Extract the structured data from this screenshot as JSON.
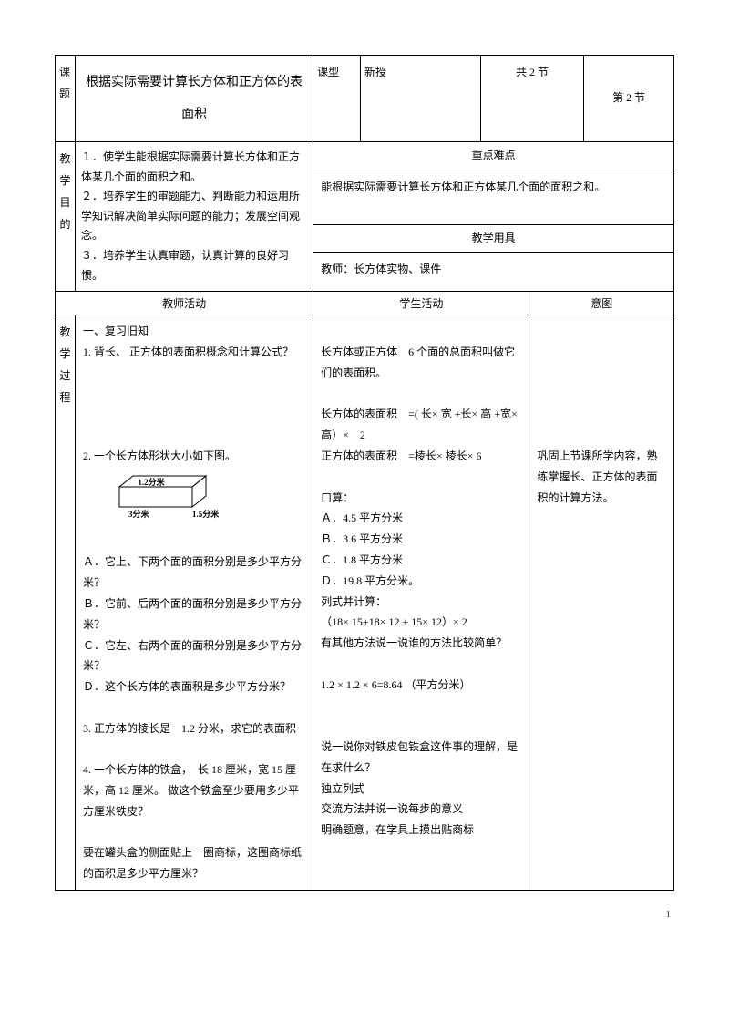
{
  "header": {
    "topic_label": "课题",
    "topic_title": "根据实际需要计算长方体和正方体的表面积",
    "type_label": "课型",
    "type_value": "新授",
    "total_sections": "共 2 节",
    "section_number": "第 2 节"
  },
  "goals": {
    "label": "教学目的",
    "content": "１．使学生能根据实际需要计算长方体和正方体某几个面的面积之和。\n２．培养学生的审题能力、判断能力和运用所学知识解决简单实际问题的能力；发展空间观念。\n３．培养学生认真审题，认真计算的良好习惯。",
    "difficulty_label": "重点难点",
    "difficulty_content": "能根据实际需要计算长方体和正方体某几个面的面积之和。",
    "tools_label": "教学用具",
    "tools_content": "教师：长方体实物、课件"
  },
  "process_header": {
    "teacher": "教师活动",
    "student": "学生活动",
    "intent": "意图"
  },
  "process": {
    "label": "教学过程",
    "teacher": "一、复习旧知\n1. 背长、 正方体的表面积概念和计算公式？\n\n\n\n\n2. 一个长方体形状大小如下图。\n[CUBOID]\nＡ．它上、下两个面的面积分别是多少平方分米？\nＢ．它前、后两个面的面积分别是多少平方分米？\nＣ．它左、右两个面的面积分别是多少平方分米？\n Ｄ．这个长方体的表面积是多少平方分米？\n\n3. 正方体的棱长是　1.2 分米，求它的表面积\n\n4. 一个长方体的铁盒，　长 18 厘米，宽 15 厘米，高 12 厘米。 做这个铁盒至少要用多少平方厘米铁皮？\n\n要在罐头盒的侧面贴上一圈商标，这圈商标纸的面积是多少平方厘米？",
    "student": "\n长方体或正方体　6 个面的总面积叫做它们的表面积。\n\n长方体的表面积　=( 长× 宽 +长× 高 +宽× 高）×　2\n正方体的表面积　=棱长× 棱长× 6\n\n口算：\nＡ．4.5 平方分米\nＢ．3.6 平方分米\nＣ．1.8 平方分米\nＤ．19.8 平方分米。\n列式并计算：\n（18× 15+18× 12 + 15× 12）× 2\n有其他方法说一说谁的方法比较简单？\n\n1.2 × 1.2 × 6=8.64 （平方分米）\n\n\n说一说你对铁皮包铁盒这件事的理解，是在求什么？\n独立列式\n交流方法并说一说每步的意义\n明确题意，在学具上摸出贴商标",
    "intent": "\n\n\n\n\n\n巩固上节课所学内容，熟练掌握长、正方体的表面积的计算方法。"
  },
  "cuboid": {
    "label_top": "1.2分米",
    "label_left": "3分米",
    "label_right": "1.5分米"
  },
  "page_number": "1"
}
